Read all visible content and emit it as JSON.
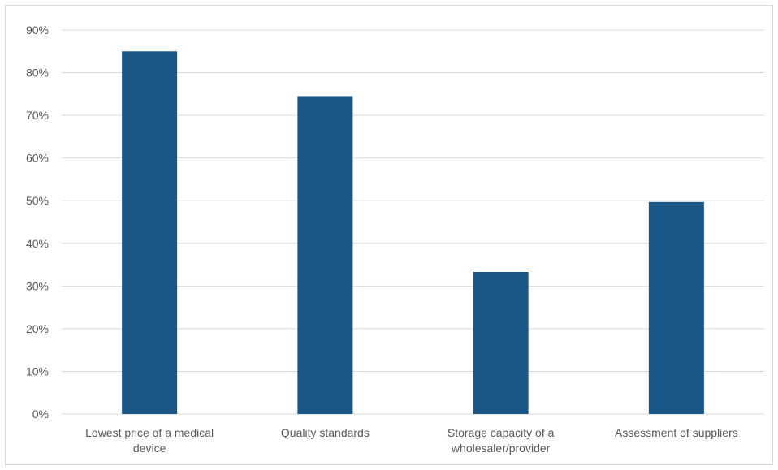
{
  "chart_data": {
    "type": "bar",
    "title": "",
    "xlabel": "",
    "ylabel": "",
    "categories": [
      [
        "Lowest price of a medical",
        "device"
      ],
      [
        "Quality standards"
      ],
      [
        "Storage capacity of a",
        "wholesaler/provider"
      ],
      [
        "Assessment of suppliers"
      ]
    ],
    "values": [
      85,
      74.5,
      33.3,
      49.7
    ],
    "ylim": [
      0,
      90
    ],
    "yticks": [
      "0%",
      "10%",
      "20%",
      "30%",
      "40%",
      "50%",
      "60%",
      "70%",
      "80%",
      "90%"
    ],
    "grid": true,
    "legend": "none",
    "colors": {
      "bar": "#1a5686",
      "grid": "#d9d9d9",
      "text": "#595959"
    }
  }
}
